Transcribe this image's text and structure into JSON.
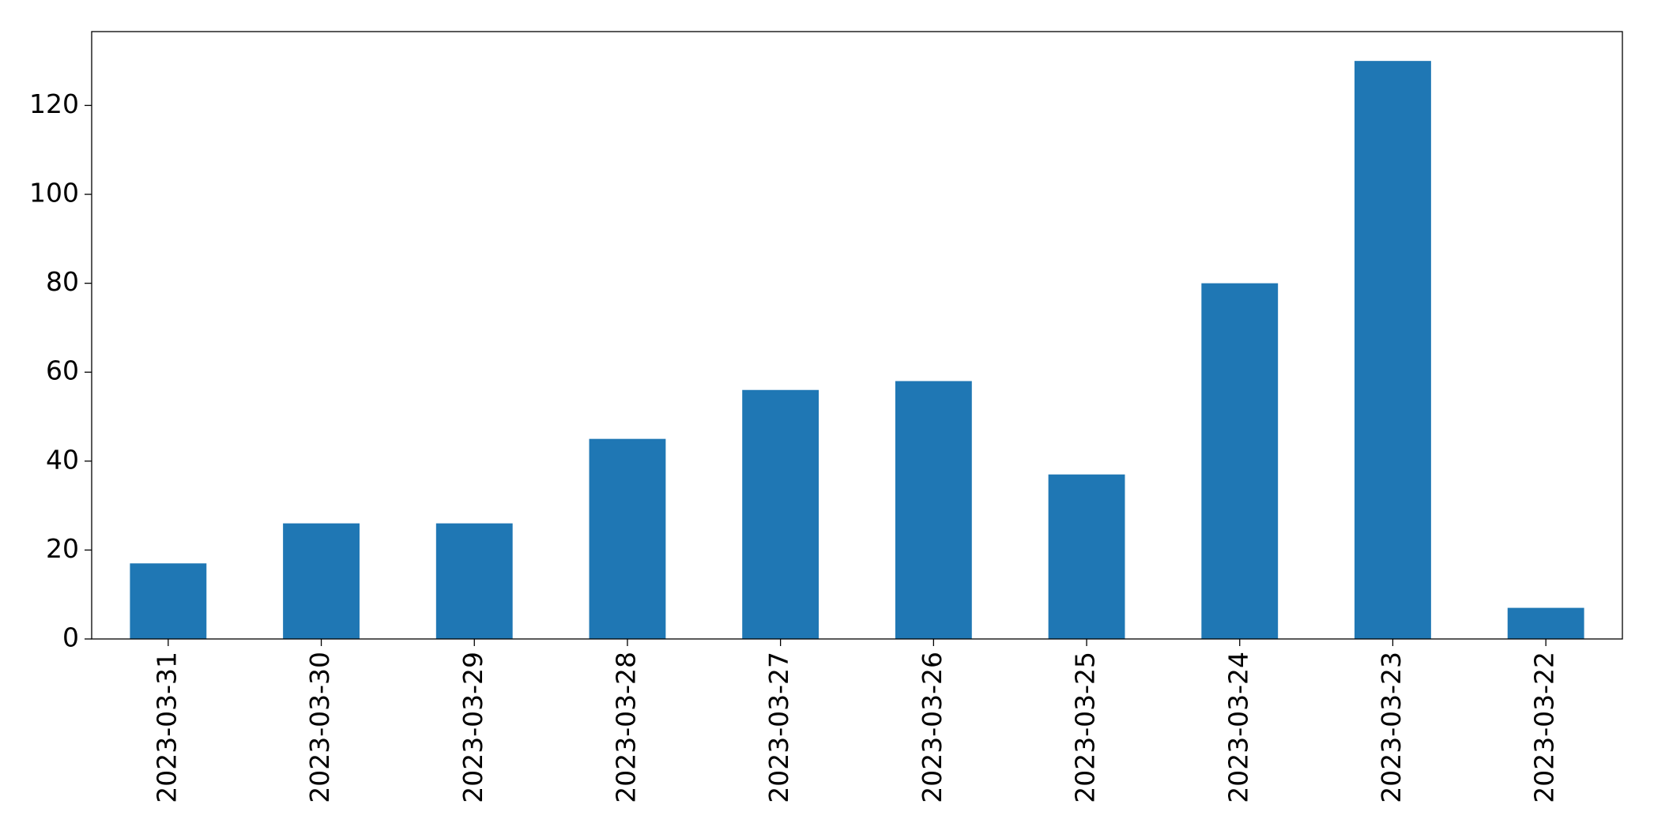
{
  "chart_data": {
    "type": "bar",
    "categories": [
      "2023-03-31",
      "2023-03-30",
      "2023-03-29",
      "2023-03-28",
      "2023-03-27",
      "2023-03-26",
      "2023-03-25",
      "2023-03-24",
      "2023-03-23",
      "2023-03-22"
    ],
    "values": [
      17,
      26,
      26,
      45,
      56,
      58,
      37,
      80,
      130,
      7
    ],
    "color": "#1f77b4",
    "ylim": [
      0,
      136.6
    ],
    "yticks": [
      0,
      20,
      40,
      60,
      80,
      100,
      120
    ],
    "grid": false
  }
}
